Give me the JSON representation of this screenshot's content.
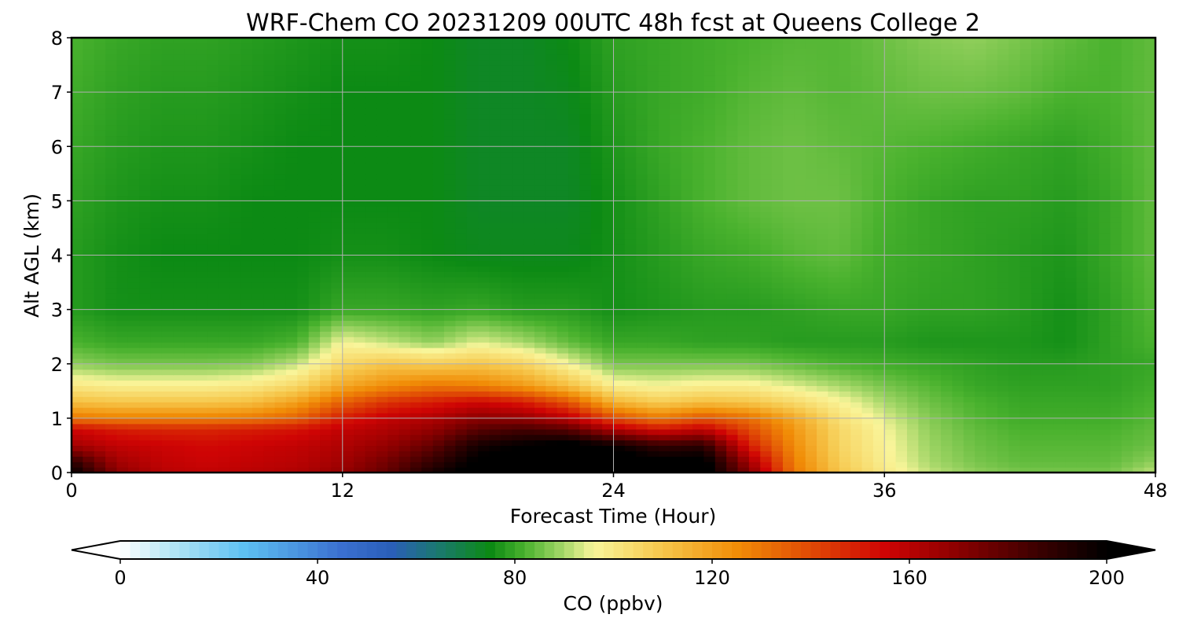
{
  "chart_data": {
    "type": "heatmap",
    "title": "WRF-Chem CO  20231209 00UTC 48h fcst at Queens College 2",
    "xlabel": "Forecast Time (Hour)",
    "ylabel": "Alt AGL (km)",
    "xlim": [
      0,
      48
    ],
    "ylim": [
      0,
      8
    ],
    "xticks": [
      0,
      12,
      24,
      36,
      48
    ],
    "yticks": [
      0,
      1,
      2,
      3,
      4,
      5,
      6,
      7,
      8
    ],
    "grid": true,
    "x": [
      0,
      2,
      4,
      6,
      8,
      10,
      12,
      14,
      16,
      18,
      20,
      22,
      24,
      26,
      28,
      30,
      32,
      34,
      36,
      38,
      40,
      42,
      44,
      46,
      48
    ],
    "y": [
      0,
      0.2,
      0.5,
      0.8,
      1.0,
      1.3,
      1.6,
      2.0,
      2.4,
      3.0,
      4.0,
      5.0,
      6.0,
      7.0,
      8.0
    ],
    "z": [
      [
        200,
        170,
        160,
        158,
        160,
        162,
        168,
        178,
        195,
        205,
        210,
        210,
        210,
        205,
        205,
        172,
        130,
        110,
        100,
        92,
        88,
        86,
        86,
        86,
        92
      ],
      [
        190,
        165,
        158,
        156,
        158,
        160,
        165,
        175,
        188,
        202,
        208,
        210,
        208,
        202,
        204,
        165,
        128,
        108,
        98,
        90,
        86,
        84,
        84,
        84,
        88
      ],
      [
        165,
        158,
        156,
        154,
        156,
        158,
        162,
        168,
        178,
        195,
        200,
        205,
        198,
        188,
        190,
        150,
        125,
        106,
        97,
        89,
        85,
        83,
        83,
        83,
        85
      ],
      [
        155,
        150,
        148,
        148,
        150,
        152,
        158,
        162,
        168,
        180,
        184,
        180,
        162,
        152,
        158,
        140,
        122,
        105,
        96,
        88,
        84,
        82,
        82,
        82,
        84
      ],
      [
        130,
        128,
        128,
        128,
        130,
        135,
        150,
        158,
        162,
        170,
        168,
        160,
        140,
        130,
        138,
        132,
        118,
        102,
        94,
        87,
        83,
        81,
        81,
        81,
        83
      ],
      [
        112,
        110,
        110,
        110,
        112,
        120,
        135,
        145,
        150,
        155,
        150,
        138,
        115,
        108,
        112,
        110,
        104,
        97,
        90,
        85,
        82,
        80,
        80,
        80,
        82
      ],
      [
        100,
        98,
        98,
        98,
        100,
        105,
        118,
        125,
        130,
        128,
        122,
        112,
        98,
        96,
        98,
        98,
        94,
        90,
        86,
        83,
        80,
        79,
        79,
        79,
        81
      ],
      [
        88,
        86,
        86,
        86,
        87,
        92,
        105,
        110,
        108,
        110,
        106,
        96,
        86,
        86,
        86,
        86,
        84,
        82,
        81,
        80,
        79,
        78,
        78,
        79,
        80
      ],
      [
        82,
        80,
        80,
        80,
        80,
        82,
        96,
        92,
        88,
        94,
        90,
        84,
        80,
        80,
        79,
        79,
        78,
        78,
        78,
        77,
        77,
        77,
        76,
        79,
        82
      ],
      [
        78,
        76,
        76,
        76,
        76,
        76,
        80,
        80,
        79,
        80,
        78,
        78,
        76,
        77,
        78,
        78,
        79,
        80,
        80,
        79,
        79,
        78,
        76,
        79,
        83
      ],
      [
        78,
        76,
        75,
        75,
        75,
        75,
        76,
        76,
        75,
        74,
        74,
        74,
        76,
        78,
        80,
        81,
        83,
        84,
        81,
        80,
        79,
        78,
        77,
        80,
        84
      ],
      [
        79,
        77,
        76,
        76,
        75,
        75,
        75,
        75,
        75,
        73,
        73,
        73,
        76,
        79,
        82,
        84,
        85,
        85,
        82,
        80,
        79,
        79,
        78,
        80,
        84
      ],
      [
        80,
        78,
        77,
        77,
        76,
        75,
        75,
        75,
        75,
        73,
        73,
        73,
        77,
        80,
        82,
        84,
        85,
        84,
        83,
        82,
        81,
        80,
        79,
        81,
        84
      ],
      [
        81,
        79,
        78,
        78,
        77,
        76,
        75,
        75,
        75,
        73,
        73,
        74,
        78,
        80,
        81,
        83,
        84,
        83,
        84,
        85,
        85,
        84,
        82,
        82,
        84
      ],
      [
        82,
        80,
        79,
        79,
        78,
        77,
        76,
        76,
        75,
        73,
        73,
        75,
        79,
        80,
        81,
        82,
        83,
        83,
        85,
        87,
        88,
        86,
        84,
        82,
        84
      ]
    ],
    "colorbar": {
      "label": "CO  (ppbv)",
      "min": 0,
      "max": 200,
      "ticks": [
        0,
        40,
        80,
        120,
        160,
        200
      ],
      "extend": "both",
      "stops": [
        {
          "v": 0,
          "c": "#ffffff"
        },
        {
          "v": 10,
          "c": "#b7e6f5"
        },
        {
          "v": 25,
          "c": "#5ec1f2"
        },
        {
          "v": 45,
          "c": "#3a6fd0"
        },
        {
          "v": 55,
          "c": "#2a5fb8"
        },
        {
          "v": 65,
          "c": "#1a7a6a"
        },
        {
          "v": 75,
          "c": "#0c8a14"
        },
        {
          "v": 82,
          "c": "#4ab22e"
        },
        {
          "v": 90,
          "c": "#a8d86a"
        },
        {
          "v": 96,
          "c": "#f9f59a"
        },
        {
          "v": 110,
          "c": "#f6c64a"
        },
        {
          "v": 125,
          "c": "#f18d07"
        },
        {
          "v": 140,
          "c": "#e04a05"
        },
        {
          "v": 155,
          "c": "#cf0404"
        },
        {
          "v": 170,
          "c": "#8a0000"
        },
        {
          "v": 185,
          "c": "#400000"
        },
        {
          "v": 200,
          "c": "#000000"
        }
      ]
    }
  }
}
